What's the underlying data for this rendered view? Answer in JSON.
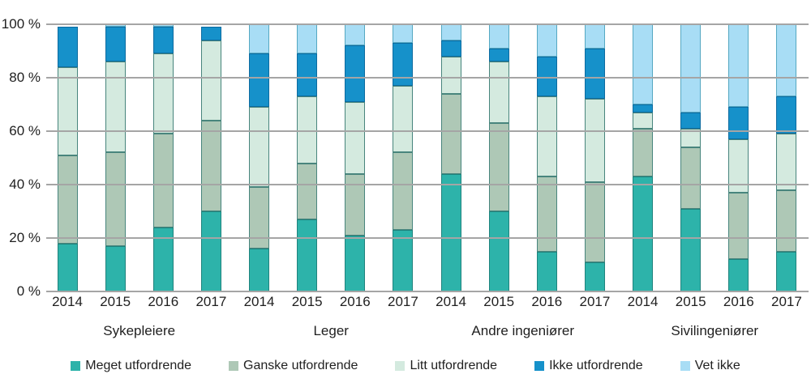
{
  "chart_data": {
    "type": "bar",
    "variant": "stacked-percent",
    "title": "",
    "xlabel": "",
    "ylabel": "",
    "ylim": [
      0,
      100
    ],
    "grid": true,
    "gridlines_on_top": true,
    "legend_position": "bottom",
    "ytick_labels": [
      "0 %",
      "20 %",
      "40 %",
      "60 %",
      "80 %",
      "100 %"
    ],
    "ytick_values": [
      0,
      20,
      40,
      60,
      80,
      100
    ],
    "groups": [
      "Sykepleiere",
      "Leger",
      "Andre ingeniører",
      "Sivilingeniører"
    ],
    "years": [
      "2014",
      "2015",
      "2016",
      "2017"
    ],
    "categories": [
      "2014",
      "2015",
      "2016",
      "2017",
      "2014",
      "2015",
      "2016",
      "2017",
      "2014",
      "2015",
      "2016",
      "2017",
      "2014",
      "2015",
      "2016",
      "2017"
    ],
    "series": [
      {
        "name": "Meget utfordrende",
        "color": "#2db3aa",
        "border_color": "#1f837d",
        "values": [
          18,
          17,
          24,
          30,
          16,
          27,
          21,
          23,
          44,
          30,
          15,
          11,
          43,
          31,
          12,
          15
        ]
      },
      {
        "name": "Ganske utfordrende",
        "color": "#aec8b6",
        "border_color": "#48857d",
        "values": [
          33,
          35,
          35,
          34,
          23,
          21,
          23,
          29,
          30,
          33,
          28,
          30,
          18,
          23,
          25,
          23
        ]
      },
      {
        "name": "Litt utfordrende",
        "color": "#d4eadf",
        "border_color": "#48857d",
        "values": [
          33,
          34,
          30,
          30,
          30,
          25,
          27,
          25,
          14,
          23,
          30,
          31,
          6,
          7,
          20,
          21
        ]
      },
      {
        "name": "Ikke utfordrende",
        "color": "#1691ca",
        "border_color": "#0d6ba0",
        "values": [
          15,
          13,
          10,
          5,
          20,
          16,
          21,
          16,
          6,
          5,
          15,
          19,
          3,
          6,
          12,
          14
        ]
      },
      {
        "name": "Vet ikke",
        "color": "#a8ddf5",
        "border_color": "#55a8c2",
        "values": [
          0,
          1,
          1,
          0,
          11,
          11,
          8,
          7,
          6,
          9,
          12,
          9,
          30,
          33,
          31,
          27
        ]
      }
    ]
  },
  "layout_text": {
    "note": ""
  }
}
